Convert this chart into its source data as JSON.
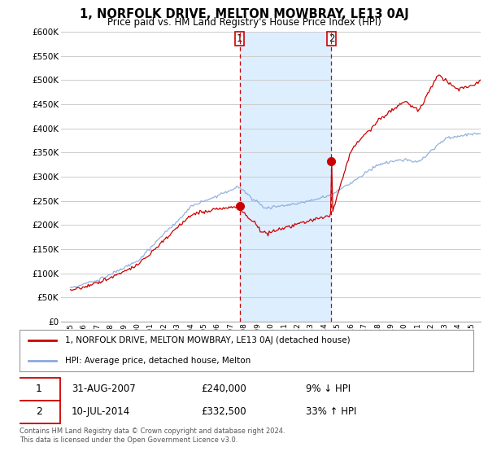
{
  "title": "1, NORFOLK DRIVE, MELTON MOWBRAY, LE13 0AJ",
  "subtitle": "Price paid vs. HM Land Registry's House Price Index (HPI)",
  "legend_line1": "1, NORFOLK DRIVE, MELTON MOWBRAY, LE13 0AJ (detached house)",
  "legend_line2": "HPI: Average price, detached house, Melton",
  "transaction1_date": "31-AUG-2007",
  "transaction1_price": "£240,000",
  "transaction1_hpi": "9% ↓ HPI",
  "transaction2_date": "10-JUL-2014",
  "transaction2_price": "£332,500",
  "transaction2_hpi": "33% ↑ HPI",
  "footnote": "Contains HM Land Registry data © Crown copyright and database right 2024.\nThis data is licensed under the Open Government Licence v3.0.",
  "house_color": "#cc0000",
  "hpi_color": "#88aadd",
  "shaded_region_color": "#ddeeff",
  "ylim": [
    0,
    600000
  ],
  "yticks": [
    0,
    50000,
    100000,
    150000,
    200000,
    250000,
    300000,
    350000,
    400000,
    450000,
    500000,
    550000,
    600000
  ],
  "grid_color": "#cccccc",
  "transaction1_year": 2007.67,
  "transaction2_year": 2014.53,
  "transaction1_value": 240000,
  "transaction2_value": 332500
}
